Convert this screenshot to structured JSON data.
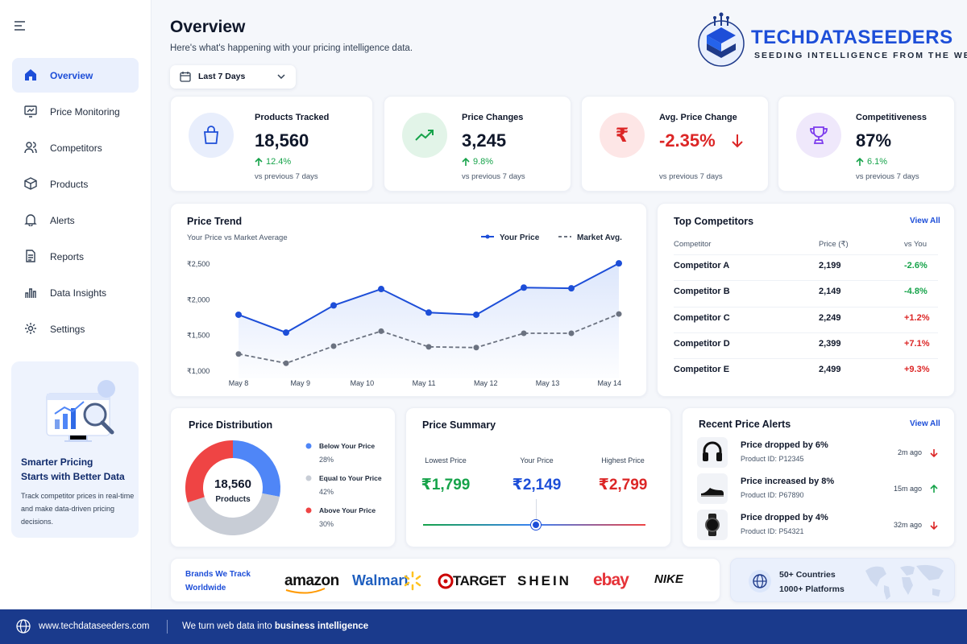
{
  "sidebar": {
    "nav": [
      "Overview",
      "Price Monitoring",
      "Competitors",
      "Products",
      "Alerts",
      "Reports",
      "Data Insights",
      "Settings"
    ],
    "promo": {
      "title": [
        "Smarter Pricing",
        "Starts with Better Data"
      ],
      "text": [
        "Track competitor prices in real-time",
        "and make data-driven pricing",
        "decisions."
      ]
    }
  },
  "header": {
    "title": "Overview",
    "subtitle": "Here's what's happening with your pricing intelligence data.",
    "range": "Last 7 Days"
  },
  "logo": {
    "name": "TECHDATASEEDERS",
    "tagline": "SEEDING INTELLIGENCE FROM THE WEB"
  },
  "kpis": [
    {
      "label": "Products Tracked",
      "value": "18,560",
      "change": "12.4%",
      "note": "vs previous 7 days"
    },
    {
      "label": "Price Changes",
      "value": "3,245",
      "change": "9.8%",
      "note": "vs previous 7 days"
    },
    {
      "label": "Avg. Price Change",
      "value": "-2.35%",
      "note": "vs previous 7 days"
    },
    {
      "label": "Competitiveness",
      "value": "87%",
      "change": "6.1%",
      "note": "vs previous 7 days"
    }
  ],
  "price_trend": {
    "type": "line",
    "title": "Price Trend",
    "subtitle": "Your Price vs Market Average",
    "x": [
      0,
      1,
      2,
      3,
      4,
      5,
      6,
      7,
      8
    ],
    "xlim": [
      0,
      8
    ],
    "xticks": [
      {
        "value": 0,
        "label": "May 8"
      },
      {
        "value": 1.3,
        "label": "May 9"
      },
      {
        "value": 2.6,
        "label": "May 10"
      },
      {
        "value": 3.9,
        "label": "May 11"
      },
      {
        "value": 5.2,
        "label": "May 12"
      },
      {
        "value": 6.5,
        "label": "May 13"
      },
      {
        "value": 7.8,
        "label": "May 14"
      }
    ],
    "ylim": [
      900,
      2600
    ],
    "yticks": [
      {
        "value": 1000,
        "label": "₹1,000"
      },
      {
        "value": 1500,
        "label": "₹1,500"
      },
      {
        "value": 2000,
        "label": "₹2,000"
      },
      {
        "value": 2500,
        "label": "₹2,500"
      }
    ],
    "grid": false,
    "series": [
      {
        "name": "Your Price",
        "color": "#1d4ed8",
        "values": [
          1790,
          1540,
          1920,
          2150,
          1820,
          1790,
          2170,
          2160,
          2510
        ]
      },
      {
        "name": "Market Avg.",
        "color": "#6b7280",
        "values": [
          1240,
          1110,
          1350,
          1560,
          1340,
          1330,
          1530,
          1530,
          1800
        ]
      }
    ]
  },
  "competitors": {
    "title": "Top Competitors",
    "link": "View All",
    "columns": [
      "Competitor",
      "Price (₹)",
      "vs You"
    ],
    "rows": [
      [
        "Competitor A",
        "2,199",
        "-2.6%"
      ],
      [
        "Competitor B",
        "2,149",
        "-4.8%"
      ],
      [
        "Competitor C",
        "2,249",
        "+1.2%"
      ],
      [
        "Competitor D",
        "2,399",
        "+7.1%"
      ],
      [
        "Competitor E",
        "2,499",
        "+9.3%"
      ]
    ]
  },
  "distribution": {
    "type": "pie",
    "title": "Price Distribution",
    "center_value": "18,560",
    "center_label": "Products",
    "categories": [
      "Below Your Price",
      "Equal to Your Price",
      "Above Your Price"
    ],
    "values": [
      28,
      42,
      30
    ],
    "value_labels": [
      "28%",
      "42%",
      "30%"
    ],
    "colors": [
      "#4f86f7",
      "#c8cdd6",
      "#ef4444"
    ]
  },
  "summary": {
    "title": "Price Summary",
    "items": [
      {
        "label": "Lowest Price",
        "value": "₹1,799"
      },
      {
        "label": "Your Price",
        "value": "₹2,149"
      },
      {
        "label": "Highest Price",
        "value": "₹2,799"
      }
    ]
  },
  "alerts": {
    "title": "Recent Price Alerts",
    "link": "View All",
    "items": [
      {
        "title": "Price dropped by 6%",
        "product": "Product ID: P12345",
        "time": "2m ago"
      },
      {
        "title": "Price increased by 8%",
        "product": "Product ID: P67890",
        "time": "15m ago"
      },
      {
        "title": "Price dropped by 4%",
        "product": "Product ID: P54321",
        "time": "32m ago"
      }
    ]
  },
  "brands": {
    "title": [
      "Brands We Track",
      "Worldwide"
    ],
    "logos": [
      "amazon",
      "Walmart",
      "TARGET",
      "SHEIN",
      "ebay",
      "NIKE"
    ]
  },
  "reach": [
    "50+ Countries",
    "1000+ Platforms"
  ],
  "footer": {
    "url": "www.techdataseeders.com",
    "tagline": "We turn web data into ",
    "tagline_bold": "business intelligence"
  }
}
